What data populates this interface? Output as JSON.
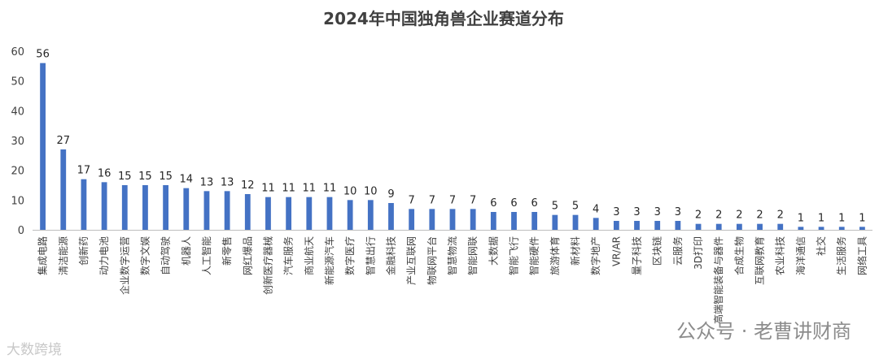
{
  "chart_data": {
    "type": "bar",
    "title": "2024年中国独角兽企业赛道分布",
    "ylim": [
      0,
      60
    ],
    "yticks": [
      0,
      10,
      20,
      30,
      40,
      50,
      60
    ],
    "grid": false,
    "color": "#4472C4",
    "categories": [
      "集成电路",
      "清洁能源",
      "创新药",
      "动力电池",
      "企业数字运营",
      "数字文娱",
      "自动驾驶",
      "机器人",
      "人工智能",
      "新零售",
      "网红爆品",
      "创新医疗器械",
      "汽车服务",
      "商业航天",
      "新能源汽车",
      "数字医疗",
      "智慧出行",
      "金融科技",
      "产业互联网",
      "物联网平台",
      "智慧物流",
      "智能网联",
      "大数据",
      "智能飞行",
      "智能硬件",
      "旅游体育",
      "新材料",
      "数字地产",
      "VR/AR",
      "量子科技",
      "区块链",
      "云服务",
      "3D打印",
      "高端智能装备与器件",
      "合成生物",
      "互联网教育",
      "农业科技",
      "海洋通信",
      "社交",
      "生活服务",
      "网络工具"
    ],
    "values": [
      56,
      27,
      17,
      16,
      15,
      15,
      15,
      14,
      13,
      13,
      12,
      11,
      11,
      11,
      11,
      10,
      10,
      9,
      7,
      7,
      7,
      7,
      6,
      6,
      6,
      5,
      5,
      4,
      3,
      3,
      3,
      3,
      2,
      2,
      2,
      2,
      2,
      1,
      1,
      1,
      1
    ]
  },
  "watermarks": {
    "left": "大数跨境",
    "right": "公众号 · 老曹讲财商"
  }
}
